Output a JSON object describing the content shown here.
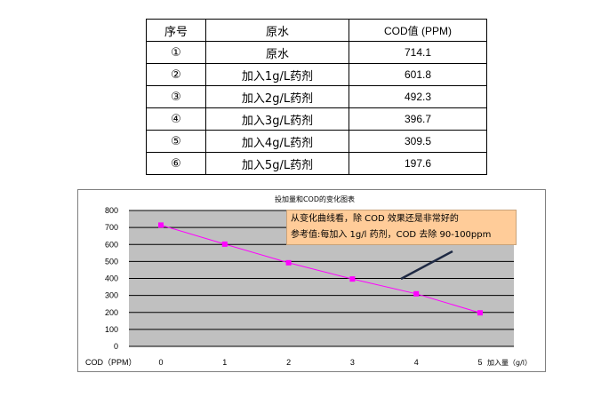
{
  "table": {
    "headers": [
      "序号",
      "原水",
      "COD值 (PPM)"
    ],
    "rows": [
      [
        "①",
        "原水",
        "714.1"
      ],
      [
        "②",
        "加入1g/L药剂",
        "601.8"
      ],
      [
        "③",
        "加入2g/L药剂",
        "492.3"
      ],
      [
        "④",
        "加入3g/L药剂",
        "396.7"
      ],
      [
        "⑤",
        "加入4g/L药剂",
        "309.5"
      ],
      [
        "⑥",
        "加入5g/L药剂",
        "197.6"
      ]
    ]
  },
  "chart_data": {
    "type": "line",
    "title": "投加量和COD的变化图表",
    "ylabel": "COD（PPM）",
    "xlabel": "加入量（g/l）",
    "x": [
      0,
      1,
      2,
      3,
      4,
      5
    ],
    "y_ticks": [
      0,
      100,
      200,
      300,
      400,
      500,
      600,
      700,
      800
    ],
    "ylim": [
      0,
      800
    ],
    "xlim": [
      0,
      5
    ],
    "grid": true,
    "series_color": "#ff00ff",
    "plot_background": "#c0c0c0",
    "series": [
      {
        "values": [
          714.1,
          601.8,
          492.3,
          396.7,
          309.5,
          197.6
        ]
      }
    ],
    "annotation": {
      "line1": "从变化曲线看，除 COD 效果还是非常好的",
      "line2": "参考值:每加入 1g/l 药剂，COD 去除 90-100ppm",
      "background": "#ffcc99"
    }
  }
}
